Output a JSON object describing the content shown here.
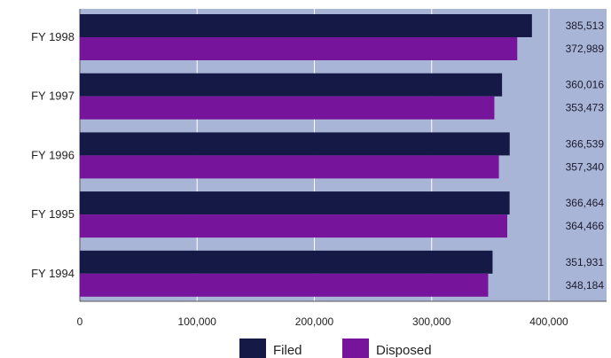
{
  "chart_data": {
    "type": "bar",
    "orientation": "horizontal",
    "categories": [
      "FY 1998",
      "FY 1997",
      "FY 1996",
      "FY 1995",
      "FY 1994"
    ],
    "series": [
      {
        "name": "Filed",
        "color": "#141a45",
        "values": [
          385513,
          360016,
          366539,
          366464,
          351931
        ],
        "labels": [
          "385,513",
          "360,016",
          "366,539",
          "366,464",
          "351,931"
        ]
      },
      {
        "name": "Disposed",
        "color": "#76159b",
        "values": [
          372989,
          353473,
          357340,
          364466,
          348184
        ],
        "labels": [
          "372,989",
          "353,473",
          "357,340",
          "364,466",
          "348,184"
        ]
      }
    ],
    "xlim": [
      0,
      400000
    ],
    "x_ticks": [
      0,
      100000,
      200000,
      300000,
      400000
    ],
    "x_tick_labels": [
      "0",
      "100,000",
      "200,000",
      "300,000",
      "400,000"
    ],
    "plot_background": "#a9b5d6",
    "grid": true,
    "legend": "bottom"
  }
}
